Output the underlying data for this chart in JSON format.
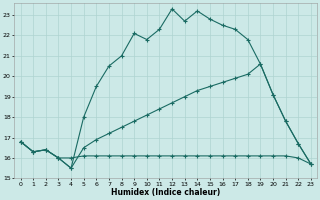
{
  "xlabel": "Humidex (Indice chaleur)",
  "bg_color": "#cce9e7",
  "grid_color": "#afd4d1",
  "line_color": "#1a6b63",
  "xlim": [
    -0.5,
    23.5
  ],
  "ylim": [
    15,
    23.6
  ],
  "yticks": [
    15,
    16,
    17,
    18,
    19,
    20,
    21,
    22,
    23
  ],
  "xticks": [
    0,
    1,
    2,
    3,
    4,
    5,
    6,
    7,
    8,
    9,
    10,
    11,
    12,
    13,
    14,
    15,
    16,
    17,
    18,
    19,
    20,
    21,
    22,
    23
  ],
  "line1_x": [
    0,
    1,
    2,
    3,
    4,
    5,
    6,
    7,
    8,
    9,
    10,
    11,
    12,
    13,
    14,
    15,
    16,
    17,
    18,
    19,
    20,
    21,
    22,
    23
  ],
  "line1_y": [
    16.8,
    16.3,
    16.4,
    16.0,
    15.5,
    18.0,
    19.5,
    20.5,
    21.0,
    22.1,
    21.8,
    22.3,
    23.3,
    22.7,
    23.2,
    22.8,
    22.5,
    22.3,
    21.8,
    20.6,
    19.1,
    17.8,
    16.7,
    15.7
  ],
  "line2_x": [
    0,
    1,
    2,
    3,
    4,
    5,
    6,
    7,
    8,
    9,
    10,
    11,
    12,
    13,
    14,
    15,
    16,
    17,
    18,
    19,
    20,
    21,
    22,
    23
  ],
  "line2_y": [
    16.8,
    16.3,
    16.4,
    16.0,
    16.0,
    16.1,
    16.1,
    16.1,
    16.1,
    16.1,
    16.1,
    16.1,
    16.1,
    16.1,
    16.1,
    16.1,
    16.1,
    16.1,
    16.1,
    16.1,
    16.1,
    16.1,
    16.0,
    15.7
  ],
  "line3_x": [
    0,
    1,
    2,
    3,
    4,
    5,
    6,
    7,
    8,
    9,
    10,
    11,
    12,
    13,
    14,
    15,
    16,
    17,
    18,
    19,
    20,
    21,
    22,
    23
  ],
  "line3_y": [
    16.8,
    16.3,
    16.4,
    16.0,
    15.5,
    16.5,
    16.9,
    17.2,
    17.5,
    17.8,
    18.1,
    18.4,
    18.7,
    19.0,
    19.3,
    19.5,
    19.7,
    19.9,
    20.1,
    20.6,
    19.1,
    17.8,
    16.7,
    15.7
  ]
}
